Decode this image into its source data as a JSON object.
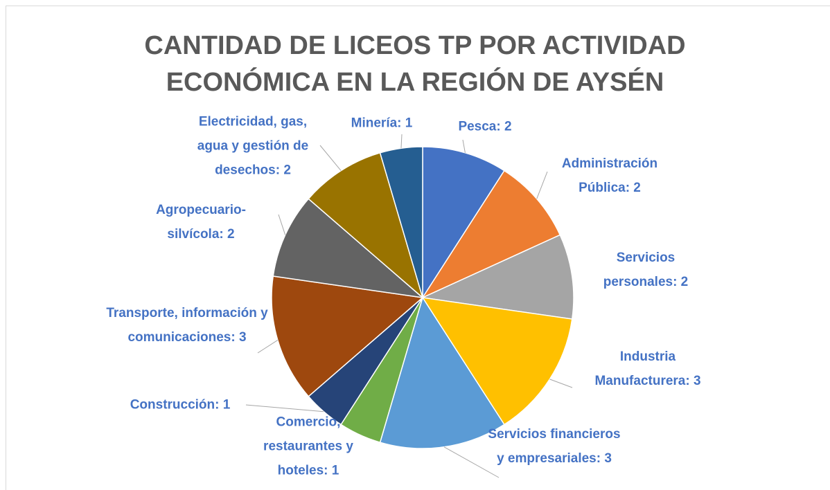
{
  "chart_data": {
    "type": "pie",
    "title": "CANTIDAD DE LICEOS TP POR ACTIVIDAD ECONÓMICA EN LA REGIÓN DE AYSÉN",
    "values": [
      2,
      2,
      2,
      3,
      3,
      1,
      1,
      3,
      2,
      2,
      1
    ],
    "value_labels": [
      "Pesca: 2",
      "Administración Pública: 2",
      "Servicios personales: 2",
      "Industria Manufacturera: 3",
      "Servicios financieros y empresariales: 3",
      "Comercio, restaurantes y hoteles: 1",
      "Construcción: 1",
      "Transporte, información y comunicaciones: 3",
      "Agropecuario-silvícola: 2",
      "Electricidad, gas, agua y gestión de desechos: 2",
      "Minería: 1"
    ],
    "colors": [
      "#4472c4",
      "#ed7d31",
      "#a5a5a5",
      "#ffc000",
      "#5b9bd5",
      "#70ad47",
      "#264478",
      "#9e480e",
      "#636363",
      "#997300",
      "#255e91"
    ]
  }
}
